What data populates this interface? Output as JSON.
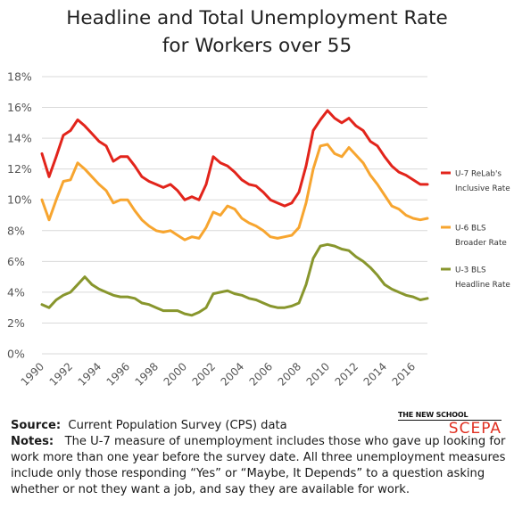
{
  "title_line1": "Headline and Total Unemployment Rate",
  "title_line2": "for Workers over 55",
  "notes": {
    "source_label": "Source:",
    "source_text": "Current Population Survey (CPS) data",
    "notes_label": "Notes:",
    "notes_text": "The U-7 measure of unemployment includes those who gave up looking for work more than one year before the survey date.  All three unemployment measures include only those responding “Yes” or “Maybe, It Depends” to a question asking whether or not they want a job, and say they are available for work."
  },
  "logo": {
    "line1": "THE NEW SCHOOL",
    "line2": "SCEPA"
  },
  "chart_data": {
    "type": "line",
    "x_ticks": [
      "1990",
      "1992",
      "1994",
      "1996",
      "1998",
      "2000",
      "2002",
      "2004",
      "2006",
      "2008",
      "2010",
      "2012",
      "2014",
      "2016"
    ],
    "y_ticks": [
      "0%",
      "2%",
      "4%",
      "6%",
      "8%",
      "10%",
      "12%",
      "14%",
      "16%",
      "18%"
    ],
    "xlim": [
      1990,
      2017
    ],
    "ylim": [
      0,
      18
    ],
    "grid": "horizontal",
    "legend_position": "right",
    "series": [
      {
        "name": "U-7 ReLab's Inclusive Rate",
        "legend_line1": "U-7 ReLab's",
        "legend_line2": "Inclusive Rate",
        "color": "#e2241b",
        "x": [
          1990.0,
          1990.5,
          1991.0,
          1991.5,
          1992.0,
          1992.5,
          1993.0,
          1993.5,
          1994.0,
          1994.5,
          1995.0,
          1995.5,
          1996.0,
          1996.5,
          1997.0,
          1997.5,
          1998.0,
          1998.5,
          1999.0,
          1999.5,
          2000.0,
          2000.5,
          2001.0,
          2001.5,
          2002.0,
          2002.5,
          2003.0,
          2003.5,
          2004.0,
          2004.5,
          2005.0,
          2005.5,
          2006.0,
          2006.5,
          2007.0,
          2007.5,
          2008.0,
          2008.5,
          2009.0,
          2009.5,
          2010.0,
          2010.5,
          2011.0,
          2011.5,
          2012.0,
          2012.5,
          2013.0,
          2013.5,
          2014.0,
          2014.5,
          2015.0,
          2015.5,
          2016.0,
          2016.5,
          2017.0
        ],
        "y": [
          13.0,
          11.5,
          12.8,
          14.2,
          14.5,
          15.2,
          14.8,
          14.3,
          13.8,
          13.5,
          12.5,
          12.8,
          12.8,
          12.2,
          11.5,
          11.2,
          11.0,
          10.8,
          11.0,
          10.6,
          10.0,
          10.2,
          10.0,
          11.0,
          12.8,
          12.4,
          12.2,
          11.8,
          11.3,
          11.0,
          10.9,
          10.5,
          10.0,
          9.8,
          9.6,
          9.8,
          10.5,
          12.2,
          14.5,
          15.2,
          15.8,
          15.3,
          15.0,
          15.3,
          14.8,
          14.5,
          13.8,
          13.5,
          12.8,
          12.2,
          11.8,
          11.6,
          11.3,
          11.0,
          11.0
        ]
      },
      {
        "name": "U-6 BLS Broader Rate",
        "legend_line1": "U-6 BLS",
        "legend_line2": "Broader Rate",
        "color": "#f7a52f",
        "x": [
          1990.0,
          1990.5,
          1991.0,
          1991.5,
          1992.0,
          1992.5,
          1993.0,
          1993.5,
          1994.0,
          1994.5,
          1995.0,
          1995.5,
          1996.0,
          1996.5,
          1997.0,
          1997.5,
          1998.0,
          1998.5,
          1999.0,
          1999.5,
          2000.0,
          2000.5,
          2001.0,
          2001.5,
          2002.0,
          2002.5,
          2003.0,
          2003.5,
          2004.0,
          2004.5,
          2005.0,
          2005.5,
          2006.0,
          2006.5,
          2007.0,
          2007.5,
          2008.0,
          2008.5,
          2009.0,
          2009.5,
          2010.0,
          2010.5,
          2011.0,
          2011.5,
          2012.0,
          2012.5,
          2013.0,
          2013.5,
          2014.0,
          2014.5,
          2015.0,
          2015.5,
          2016.0,
          2016.5,
          2017.0
        ],
        "y": [
          10.0,
          8.7,
          10.0,
          11.2,
          11.3,
          12.4,
          12.0,
          11.5,
          11.0,
          10.6,
          9.8,
          10.0,
          10.0,
          9.3,
          8.7,
          8.3,
          8.0,
          7.9,
          8.0,
          7.7,
          7.4,
          7.6,
          7.5,
          8.2,
          9.2,
          9.0,
          9.6,
          9.4,
          8.8,
          8.5,
          8.3,
          8.0,
          7.6,
          7.5,
          7.6,
          7.7,
          8.2,
          9.8,
          12.0,
          13.5,
          13.6,
          13.0,
          12.8,
          13.4,
          12.9,
          12.4,
          11.6,
          11.0,
          10.3,
          9.6,
          9.4,
          9.0,
          8.8,
          8.7,
          8.8
        ]
      },
      {
        "name": "U-3 BLS Headline Rate",
        "legend_line1": "U-3 BLS",
        "legend_line2": "Headline Rate",
        "color": "#88962d",
        "x": [
          1990.0,
          1990.5,
          1991.0,
          1991.5,
          1992.0,
          1992.5,
          1993.0,
          1993.5,
          1994.0,
          1994.5,
          1995.0,
          1995.5,
          1996.0,
          1996.5,
          1997.0,
          1997.5,
          1998.0,
          1998.5,
          1999.0,
          1999.5,
          2000.0,
          2000.5,
          2001.0,
          2001.5,
          2002.0,
          2002.5,
          2003.0,
          2003.5,
          2004.0,
          2004.5,
          2005.0,
          2005.5,
          2006.0,
          2006.5,
          2007.0,
          2007.5,
          2008.0,
          2008.5,
          2009.0,
          2009.5,
          2010.0,
          2010.5,
          2011.0,
          2011.5,
          2012.0,
          2012.5,
          2013.0,
          2013.5,
          2014.0,
          2014.5,
          2015.0,
          2015.5,
          2016.0,
          2016.5,
          2017.0
        ],
        "y": [
          3.2,
          3.0,
          3.5,
          3.8,
          4.0,
          4.5,
          5.0,
          4.5,
          4.2,
          4.0,
          3.8,
          3.7,
          3.7,
          3.6,
          3.3,
          3.2,
          3.0,
          2.8,
          2.8,
          2.8,
          2.6,
          2.5,
          2.7,
          3.0,
          3.9,
          4.0,
          4.1,
          3.9,
          3.8,
          3.6,
          3.5,
          3.3,
          3.1,
          3.0,
          3.0,
          3.1,
          3.3,
          4.5,
          6.2,
          7.0,
          7.1,
          7.0,
          6.8,
          6.7,
          6.3,
          6.0,
          5.6,
          5.1,
          4.5,
          4.2,
          4.0,
          3.8,
          3.7,
          3.5,
          3.6
        ]
      }
    ]
  }
}
